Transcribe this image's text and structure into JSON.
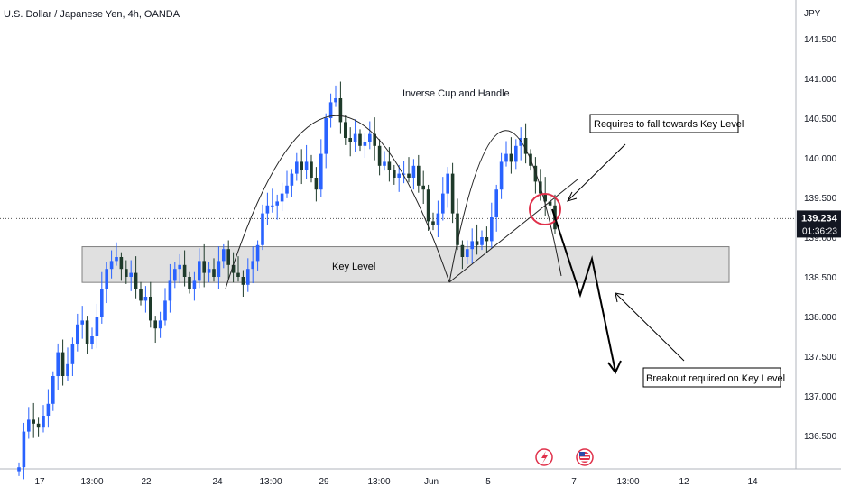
{
  "header": {
    "symbol_title": "U.S. Dollar / Japanese Yen, 4h, OANDA"
  },
  "price_axis": {
    "currency": "JPY",
    "current_price": "139.234",
    "countdown": "01:36:23"
  },
  "annotations": {
    "pattern": "Inverse Cup and Handle",
    "zone": "Key Level",
    "note_top": "Requires to fall towards Key Level",
    "note_bottom": "Breakout required on Key Level"
  },
  "markers": {
    "event_icon_1": "lightning-icon",
    "event_icon_2": "us-flag-icon"
  },
  "colors": {
    "up": "#2962ff",
    "down": "#1e3a2a",
    "zone_fill": "#e0e0e0",
    "highlight_circle": "#e0304a"
  },
  "chart_data": {
    "type": "candlestick",
    "title": "U.S. Dollar / Japanese Yen, 4h, OANDA",
    "ylabel": "JPY",
    "ylim": [
      136.05,
      141.95
    ],
    "y_ticks": [
      "141.500",
      "141.000",
      "140.500",
      "140.000",
      "139.500",
      "139.000",
      "138.500",
      "138.000",
      "137.500",
      "137.000",
      "136.500"
    ],
    "x_ticks": [
      "17",
      "13:00",
      "22",
      "24",
      "13:00",
      "29",
      "13:00",
      "Jun",
      "5",
      "7",
      "13:00",
      "12",
      "14"
    ],
    "key_level_zone": [
      138.43,
      138.88
    ],
    "current_price": 139.234,
    "closes": [
      136.1,
      136.55,
      136.7,
      136.65,
      136.6,
      136.75,
      136.9,
      137.25,
      137.55,
      137.25,
      137.4,
      137.65,
      137.9,
      137.95,
      137.65,
      137.75,
      138.0,
      138.35,
      138.6,
      138.7,
      138.75,
      138.6,
      138.5,
      138.55,
      138.35,
      138.2,
      138.25,
      137.95,
      137.85,
      137.95,
      138.2,
      138.45,
      138.6,
      138.65,
      138.5,
      138.35,
      138.45,
      138.7,
      138.55,
      138.6,
      138.5,
      138.7,
      138.85,
      138.65,
      138.55,
      138.5,
      138.4,
      138.6,
      138.7,
      138.9,
      139.3,
      139.4,
      139.4,
      139.45,
      139.55,
      139.65,
      139.8,
      139.95,
      139.85,
      139.95,
      139.75,
      139.6,
      140.05,
      140.5,
      140.7,
      140.75,
      140.45,
      140.25,
      140.2,
      140.3,
      140.15,
      140.2,
      140.3,
      140.15,
      139.9,
      139.95,
      139.85,
      139.75,
      139.8,
      139.8,
      139.75,
      139.9,
      139.65,
      139.6,
      139.2,
      139.15,
      139.3,
      139.55,
      139.8,
      139.3,
      138.9,
      138.75,
      138.85,
      138.95,
      138.9,
      139.0,
      138.95,
      139.25,
      139.6,
      139.95,
      140.05,
      139.95,
      140.15,
      140.25,
      140.05,
      139.9,
      139.7,
      139.55,
      139.45,
      139.4,
      139.1
    ]
  }
}
